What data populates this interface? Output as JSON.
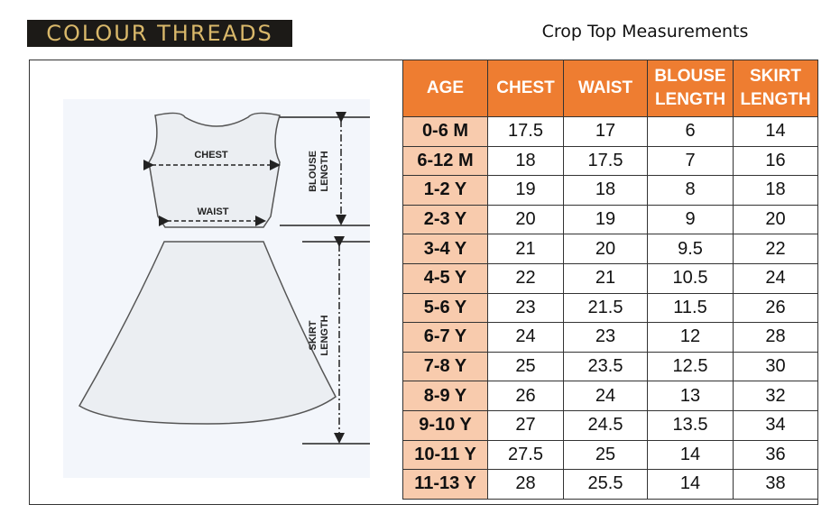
{
  "brand": "COLOUR THREADS",
  "title": "Crop Top Measurements",
  "diagram": {
    "chest": "CHEST",
    "waist": "WAIST",
    "blouse_length": [
      "BLOUSE",
      "LENGTH"
    ],
    "skirt_length": [
      "SKIRT",
      "LENGTH"
    ]
  },
  "table": {
    "header": [
      "AGE",
      "CHEST",
      "WAIST",
      "BLOUSE LENGTH",
      "SKIRT LENGTH"
    ],
    "rows": [
      [
        "0-6 M",
        17.5,
        17,
        6,
        14
      ],
      [
        "6-12 M",
        18,
        17.5,
        7,
        16
      ],
      [
        "1-2 Y",
        19,
        18,
        8,
        18
      ],
      [
        "2-3 Y",
        20,
        19,
        9,
        20
      ],
      [
        "3-4 Y",
        21,
        20,
        9.5,
        22
      ],
      [
        "4-5 Y",
        22,
        21,
        10.5,
        24
      ],
      [
        "5-6 Y",
        23,
        21.5,
        11.5,
        26
      ],
      [
        "6-7 Y",
        24,
        23,
        12,
        28
      ],
      [
        "7-8 Y",
        25,
        23.5,
        12.5,
        30
      ],
      [
        "8-9 Y",
        26,
        24,
        13,
        32
      ],
      [
        "9-10 Y",
        27,
        24.5,
        13.5,
        34
      ],
      [
        "10-11 Y",
        27.5,
        25,
        14,
        36
      ],
      [
        "11-13 Y",
        28,
        25.5,
        14,
        38
      ]
    ]
  }
}
